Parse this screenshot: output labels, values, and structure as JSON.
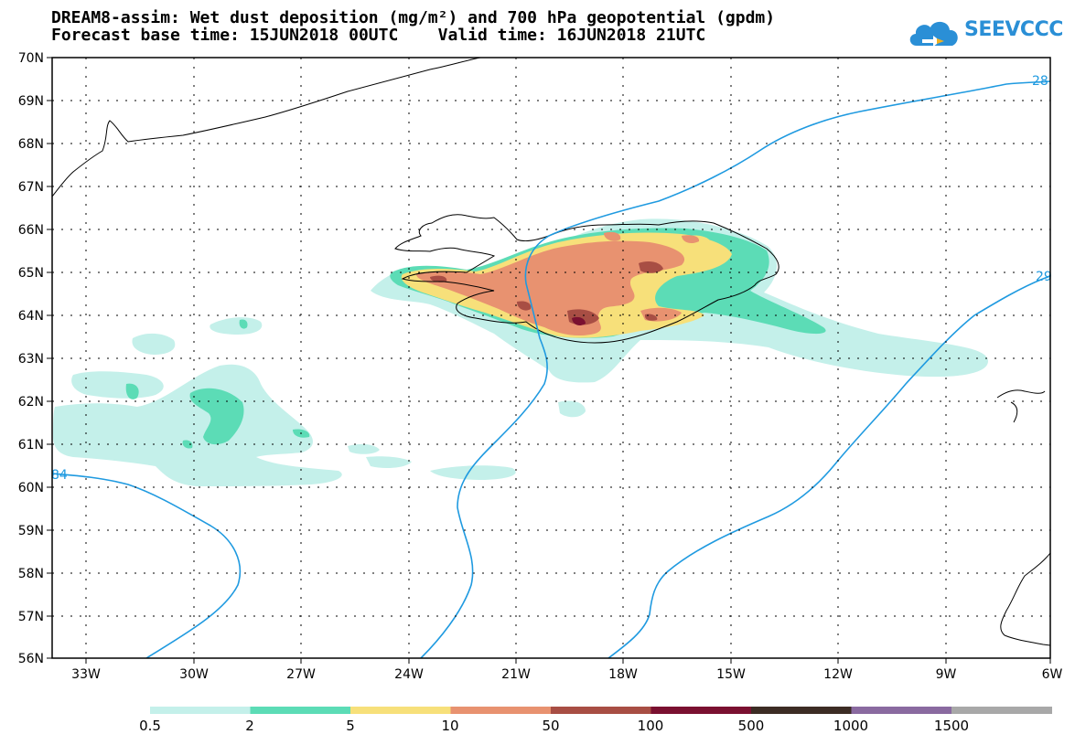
{
  "title": {
    "line1": "DREAM8-assim: Wet dust deposition (mg/m²) and 700 hPa geopotential (gpdm)",
    "line2": "Forecast base time: 15JUN2018 00UTC    Valid time: 16JUN2018 21UTC"
  },
  "logo": {
    "text": "SEEVCCC",
    "icon": "cloud-logo-icon",
    "color": "#2a8fd6"
  },
  "map": {
    "lon_range": [
      -34.5,
      -6
    ],
    "lat_range": [
      56,
      70
    ],
    "lon_ticks": [
      "33W",
      "30W",
      "27W",
      "24W",
      "21W",
      "18W",
      "15W",
      "12W",
      "9W",
      "6W"
    ],
    "lat_ticks": [
      "70N",
      "69N",
      "68N",
      "67N",
      "66N",
      "65N",
      "64N",
      "63N",
      "62N",
      "61N",
      "60N",
      "59N",
      "58N",
      "57N",
      "56N"
    ],
    "grid": "dotted"
  },
  "contours": {
    "color": "#1f9ae0",
    "labels": [
      "28",
      "29",
      "84"
    ]
  },
  "colorbar": {
    "labels": [
      "0.5",
      "2",
      "5",
      "10",
      "50",
      "100",
      "500",
      "1000",
      "1500"
    ],
    "colors": [
      "#c4f0ea",
      "#5cdcb6",
      "#f7e07a",
      "#e89270",
      "#a84e44",
      "#7a1030",
      "#3c2c24",
      "#8a6aa0",
      "#a8a8a8"
    ]
  },
  "dust_colors": {
    "level1": "#c4f0ea",
    "level2": "#5cdcb6",
    "level3": "#f7e07a",
    "level4": "#e89270",
    "level5": "#a84e44",
    "level6": "#7a1030"
  }
}
